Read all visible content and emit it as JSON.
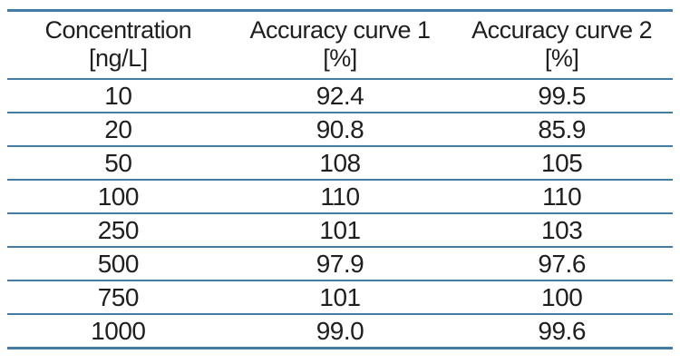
{
  "chart_data": {
    "type": "table",
    "columns": [
      {
        "line1": "Concentration",
        "line2": "[ng/L]"
      },
      {
        "line1": "Accuracy curve 1",
        "line2": "[%]"
      },
      {
        "line1": "Accuracy curve 2",
        "line2": "[%]"
      }
    ],
    "rows": [
      [
        "10",
        "92.4",
        "99.5"
      ],
      [
        "20",
        "90.8",
        "85.9"
      ],
      [
        "50",
        "108",
        "105"
      ],
      [
        "100",
        "110",
        "110"
      ],
      [
        "250",
        "101",
        "103"
      ],
      [
        "500",
        "97.9",
        "97.6"
      ],
      [
        "750",
        "101",
        "100"
      ],
      [
        "1000",
        "99.0",
        "99.6"
      ]
    ],
    "colors": {
      "rule": "#447CA4",
      "text": "#1f1f1f",
      "background": "#ffffff"
    }
  }
}
